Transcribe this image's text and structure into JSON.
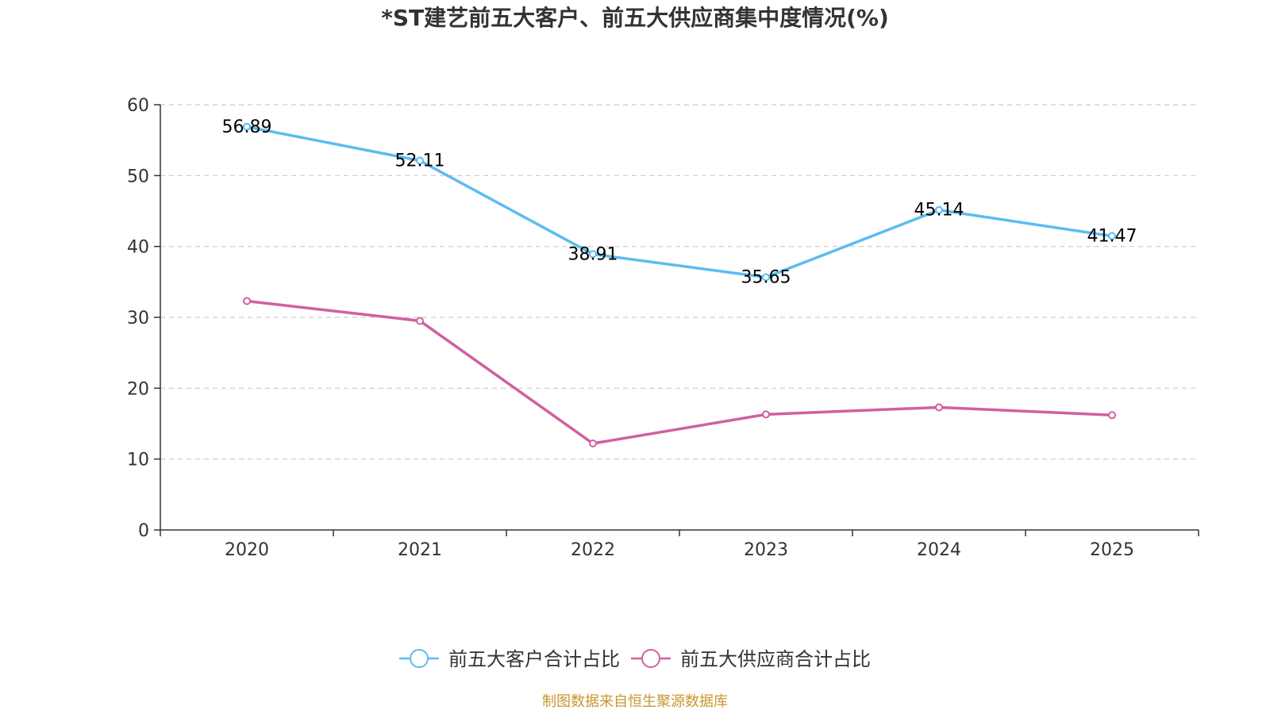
{
  "chart_data": {
    "type": "line",
    "title": "*ST建艺前五大客户、前五大供应商集中度情况(%)",
    "categories": [
      "2020",
      "2021",
      "2022",
      "2023",
      "2024",
      "2025"
    ],
    "ylim": [
      0,
      60
    ],
    "yticks": [
      0,
      10,
      20,
      30,
      40,
      50,
      60
    ],
    "grid": true,
    "legend_position": "bottom-center",
    "series": [
      {
        "name": "前五大客户合计占比",
        "color": "#5bbcf0",
        "values": [
          56.89,
          52.11,
          38.91,
          35.65,
          45.14,
          41.47
        ],
        "labels": [
          "56.89",
          "52.11",
          "38.91",
          "35.65",
          "45.14",
          "41.47"
        ],
        "show_labels": true
      },
      {
        "name": "前五大供应商合计占比",
        "color": "#d0609f",
        "values": [
          32.3,
          29.5,
          12.2,
          16.3,
          17.3,
          16.2
        ],
        "show_labels": false
      }
    ],
    "source": "制图数据来自恒生聚源数据库"
  }
}
